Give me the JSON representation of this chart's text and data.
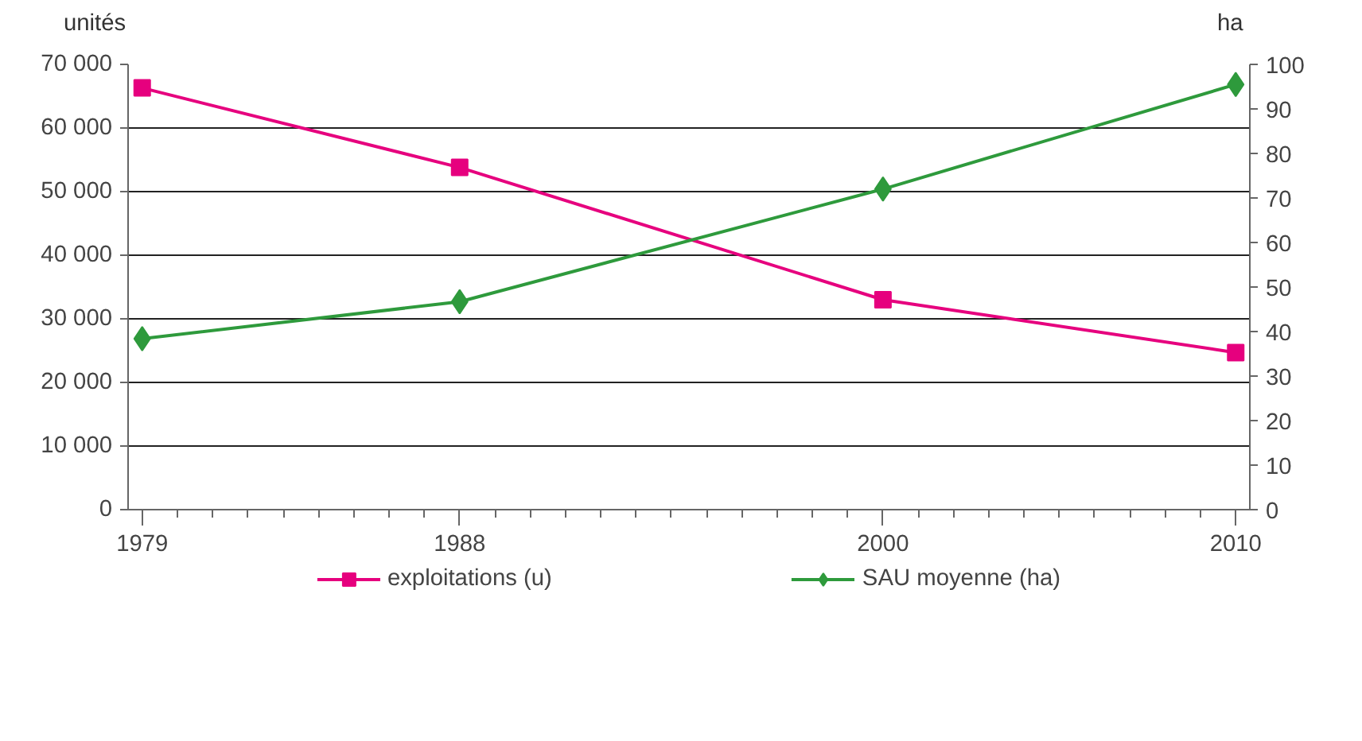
{
  "chart_data": {
    "type": "line",
    "ylabel": "unités",
    "y2label": "ha",
    "x": [
      1979,
      1988,
      2000,
      2010
    ],
    "series": [
      {
        "name": "exploitations (u)",
        "color": "#e6007e",
        "values": [
          66300,
          53800,
          33000,
          24700
        ],
        "marker": "square"
      },
      {
        "name": "SAU moyenne (ha)",
        "color": "#2e9a3c",
        "values": [
          38.4,
          46.7,
          72.0,
          95.5
        ],
        "marker": "diamond",
        "axis": "y2"
      }
    ],
    "xlim": [
      1978.6,
      2010.4
    ],
    "xticks": [
      1979,
      1988,
      2000,
      2010
    ],
    "ylim": [
      0,
      70000
    ],
    "yticks": [
      {
        "value": 0,
        "label": "0"
      },
      {
        "value": 10000,
        "label": "10 000"
      },
      {
        "value": 20000,
        "label": "20 000"
      },
      {
        "value": 30000,
        "label": "30 000"
      },
      {
        "value": 40000,
        "label": "40 000"
      },
      {
        "value": 50000,
        "label": "50 000"
      },
      {
        "value": 60000,
        "label": "60 000"
      },
      {
        "value": 70000,
        "label": "70 000"
      }
    ],
    "y2lim": [
      0,
      100
    ],
    "y2ticks": [
      0,
      10,
      20,
      30,
      40,
      50,
      60,
      70,
      80,
      90,
      100
    ],
    "grid": "y",
    "legend": "bottom",
    "line_style": "solid"
  }
}
